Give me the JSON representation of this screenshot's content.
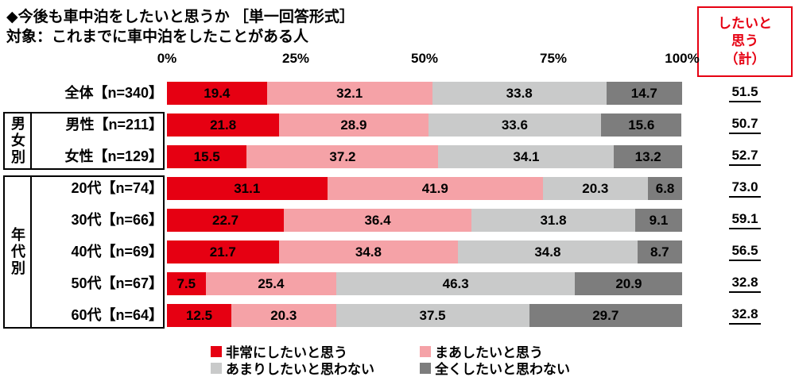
{
  "chart_data": {
    "type": "bar",
    "stacked": true,
    "orientation": "horizontal",
    "title": "◆今後も車中泊をしたいと思うか ［単一回答形式］",
    "subtitle": "対象：これまでに車中泊をしたことがある人",
    "unit": "%",
    "xlim": [
      0,
      100
    ],
    "tick_labels": [
      "0%",
      "25%",
      "50%",
      "75%",
      "100%"
    ],
    "legend_position": "bottom",
    "series": [
      {
        "name": "非常にしたいと思う",
        "color": "#e60012"
      },
      {
        "name": "まあしたいと思う",
        "color": "#f5a2a7"
      },
      {
        "name": "あまりしたいと思わない",
        "color": "#c9caca"
      },
      {
        "name": "全くしたいと思わない",
        "color": "#7d7d7d"
      }
    ],
    "groups": [
      {
        "group": "",
        "rows": [
          {
            "label": "全体【n=340】",
            "values": [
              19.4,
              32.1,
              33.8,
              14.7
            ],
            "total": "51.5"
          }
        ]
      },
      {
        "group": "男女別",
        "rows": [
          {
            "label": "男性【n=211】",
            "values": [
              21.8,
              28.9,
              33.6,
              15.6
            ],
            "total": "50.7"
          },
          {
            "label": "女性【n=129】",
            "values": [
              15.5,
              37.2,
              34.1,
              13.2
            ],
            "total": "52.7"
          }
        ]
      },
      {
        "group": "年代別",
        "rows": [
          {
            "label": "20代【n=74】",
            "values": [
              31.1,
              41.9,
              20.3,
              6.8
            ],
            "total": "73.0"
          },
          {
            "label": "30代【n=66】",
            "values": [
              22.7,
              36.4,
              31.8,
              9.1
            ],
            "total": "59.1"
          },
          {
            "label": "40代【n=69】",
            "values": [
              21.7,
              34.8,
              34.8,
              8.7
            ],
            "total": "56.5"
          },
          {
            "label": "50代【n=67】",
            "values": [
              7.5,
              25.4,
              46.3,
              20.9
            ],
            "total": "32.8"
          },
          {
            "label": "60代【n=64】",
            "values": [
              12.5,
              20.3,
              37.5,
              29.7
            ],
            "total": "32.8"
          }
        ]
      }
    ]
  },
  "summary": {
    "header": "したいと\n思う\n（計）",
    "accent_color": "#e60012"
  }
}
